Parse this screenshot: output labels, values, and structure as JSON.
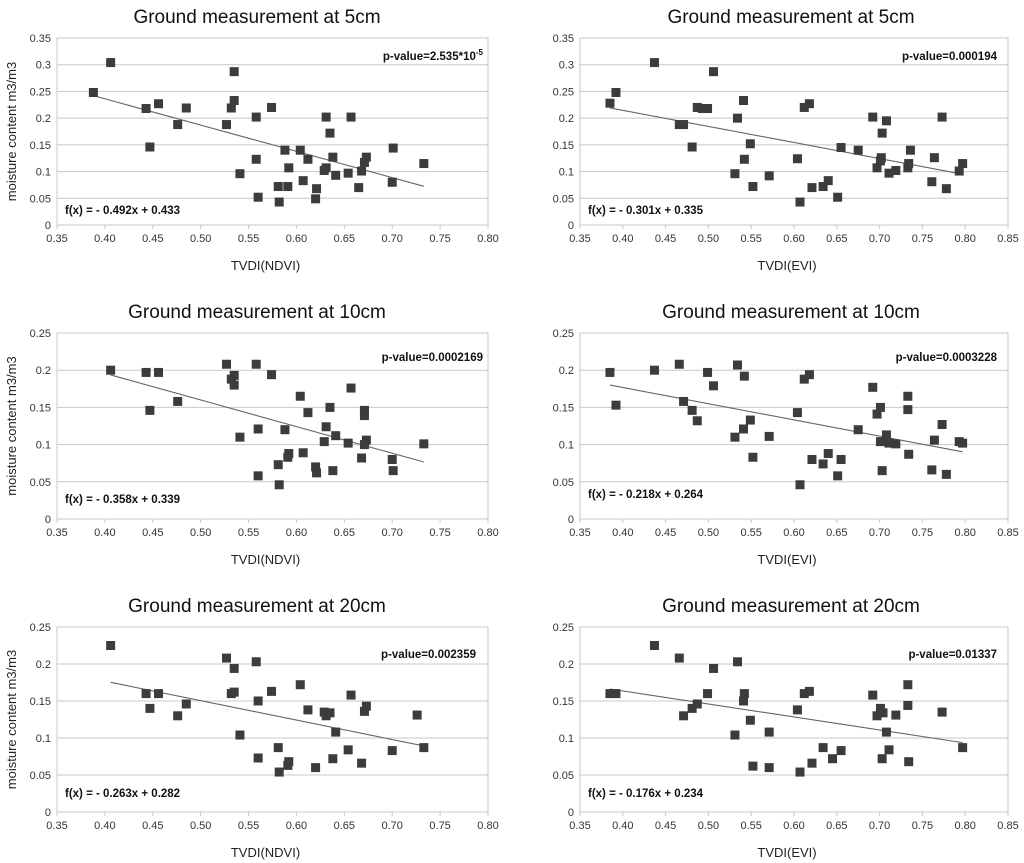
{
  "figure": {
    "background": "#ffffff",
    "marker_color": "#3c3c3c",
    "trendline_color": "#666666",
    "grid_color": "#c8c8c8"
  },
  "chart_data": [
    {
      "type": "scatter",
      "title": "Ground measurement at 5cm",
      "xlabel": "TVDI(NDVI)",
      "ylabel": "moisture content m3/m3",
      "xlim": [
        0.35,
        0.8
      ],
      "ylim": [
        0,
        0.35
      ],
      "x_ticks": [
        "0.35",
        "0.40",
        "0.45",
        "0.50",
        "0.55",
        "0.60",
        "0.65",
        "0.70",
        "0.75",
        "0.80"
      ],
      "y_ticks": [
        "0",
        "0.05",
        "0.1",
        "0.15",
        "0.2",
        "0.25",
        "0.3",
        "0.35"
      ],
      "grid": "horizontal",
      "equation": "f(x) =  - 0.492x + 0.433",
      "p_value": "p-value=2.535*10-5",
      "trendline": {
        "slope": -0.492,
        "intercept": 0.433,
        "x_range": [
          0.388,
          0.733
        ]
      },
      "points": [
        [
          0.388,
          0.248
        ],
        [
          0.406,
          0.304
        ],
        [
          0.443,
          0.218
        ],
        [
          0.447,
          0.146
        ],
        [
          0.456,
          0.227
        ],
        [
          0.476,
          0.188
        ],
        [
          0.485,
          0.219
        ],
        [
          0.527,
          0.188
        ],
        [
          0.532,
          0.219
        ],
        [
          0.535,
          0.233
        ],
        [
          0.535,
          0.287
        ],
        [
          0.541,
          0.096
        ],
        [
          0.558,
          0.123
        ],
        [
          0.558,
          0.202
        ],
        [
          0.56,
          0.052
        ],
        [
          0.574,
          0.22
        ],
        [
          0.581,
          0.072
        ],
        [
          0.582,
          0.043
        ],
        [
          0.588,
          0.14
        ],
        [
          0.591,
          0.072
        ],
        [
          0.592,
          0.107
        ],
        [
          0.604,
          0.14
        ],
        [
          0.607,
          0.083
        ],
        [
          0.612,
          0.123
        ],
        [
          0.62,
          0.049
        ],
        [
          0.621,
          0.068
        ],
        [
          0.629,
          0.102
        ],
        [
          0.631,
          0.107
        ],
        [
          0.631,
          0.202
        ],
        [
          0.635,
          0.172
        ],
        [
          0.638,
          0.127
        ],
        [
          0.641,
          0.093
        ],
        [
          0.654,
          0.097
        ],
        [
          0.657,
          0.202
        ],
        [
          0.665,
          0.07
        ],
        [
          0.668,
          0.101
        ],
        [
          0.671,
          0.117
        ],
        [
          0.673,
          0.127
        ],
        [
          0.7,
          0.08
        ],
        [
          0.701,
          0.144
        ],
        [
          0.733,
          0.115
        ]
      ]
    },
    {
      "type": "scatter",
      "title": "Ground measurement at 5cm",
      "xlabel": "TVDI(EVI)",
      "ylabel": "",
      "xlim": [
        0.35,
        0.85
      ],
      "ylim": [
        0,
        0.35
      ],
      "x_ticks": [
        "0.35",
        "0.40",
        "0.45",
        "0.50",
        "0.55",
        "0.60",
        "0.65",
        "0.70",
        "0.75",
        "0.80",
        "0.85"
      ],
      "y_ticks": [
        "0",
        "0.05",
        "0.1",
        "0.15",
        "0.2",
        "0.25",
        "0.3",
        "0.35"
      ],
      "grid": "horizontal",
      "equation": "f(x) =  - 0.301x + 0.335",
      "p_value": "p-value=0.000194",
      "trendline": {
        "slope": -0.301,
        "intercept": 0.335,
        "x_range": [
          0.385,
          0.797
        ]
      },
      "points": [
        [
          0.385,
          0.228
        ],
        [
          0.392,
          0.248
        ],
        [
          0.437,
          0.304
        ],
        [
          0.466,
          0.188
        ],
        [
          0.471,
          0.188
        ],
        [
          0.481,
          0.146
        ],
        [
          0.487,
          0.22
        ],
        [
          0.493,
          0.218
        ],
        [
          0.499,
          0.218
        ],
        [
          0.506,
          0.287
        ],
        [
          0.531,
          0.096
        ],
        [
          0.534,
          0.2
        ],
        [
          0.541,
          0.233
        ],
        [
          0.542,
          0.123
        ],
        [
          0.549,
          0.152
        ],
        [
          0.552,
          0.072
        ],
        [
          0.571,
          0.092
        ],
        [
          0.604,
          0.124
        ],
        [
          0.607,
          0.043
        ],
        [
          0.612,
          0.22
        ],
        [
          0.618,
          0.227
        ],
        [
          0.621,
          0.07
        ],
        [
          0.634,
          0.072
        ],
        [
          0.64,
          0.083
        ],
        [
          0.651,
          0.052
        ],
        [
          0.655,
          0.145
        ],
        [
          0.675,
          0.14
        ],
        [
          0.692,
          0.202
        ],
        [
          0.697,
          0.107
        ],
        [
          0.701,
          0.12
        ],
        [
          0.702,
          0.126
        ],
        [
          0.703,
          0.172
        ],
        [
          0.708,
          0.195
        ],
        [
          0.711,
          0.097
        ],
        [
          0.719,
          0.102
        ],
        [
          0.733,
          0.107
        ],
        [
          0.734,
          0.115
        ],
        [
          0.736,
          0.14
        ],
        [
          0.761,
          0.081
        ],
        [
          0.764,
          0.126
        ],
        [
          0.773,
          0.202
        ],
        [
          0.778,
          0.068
        ],
        [
          0.793,
          0.101
        ],
        [
          0.797,
          0.115
        ]
      ]
    },
    {
      "type": "scatter",
      "title": "Ground measurement at 10cm",
      "xlabel": "TVDI(NDVI)",
      "ylabel": "moisture content m3/m3",
      "xlim": [
        0.35,
        0.8
      ],
      "ylim": [
        0,
        0.25
      ],
      "x_ticks": [
        "0.35",
        "0.40",
        "0.45",
        "0.50",
        "0.55",
        "0.60",
        "0.65",
        "0.70",
        "0.75",
        "0.80"
      ],
      "y_ticks": [
        "0",
        "0.05",
        "0.1",
        "0.15",
        "0.2",
        "0.25"
      ],
      "grid": "horizontal",
      "equation": "f(x) =  - 0.358x + 0.339",
      "p_value": "p-value=0.0002169",
      "trendline": {
        "slope": -0.358,
        "intercept": 0.339,
        "x_range": [
          0.406,
          0.733
        ]
      },
      "points": [
        [
          0.406,
          0.2
        ],
        [
          0.443,
          0.197
        ],
        [
          0.447,
          0.146
        ],
        [
          0.456,
          0.197
        ],
        [
          0.476,
          0.158
        ],
        [
          0.527,
          0.208
        ],
        [
          0.532,
          0.188
        ],
        [
          0.535,
          0.193
        ],
        [
          0.535,
          0.18
        ],
        [
          0.541,
          0.11
        ],
        [
          0.558,
          0.208
        ],
        [
          0.56,
          0.058
        ],
        [
          0.56,
          0.121
        ],
        [
          0.574,
          0.194
        ],
        [
          0.581,
          0.073
        ],
        [
          0.582,
          0.046
        ],
        [
          0.588,
          0.12
        ],
        [
          0.591,
          0.083
        ],
        [
          0.592,
          0.088
        ],
        [
          0.604,
          0.165
        ],
        [
          0.607,
          0.089
        ],
        [
          0.612,
          0.143
        ],
        [
          0.62,
          0.07
        ],
        [
          0.621,
          0.062
        ],
        [
          0.629,
          0.104
        ],
        [
          0.631,
          0.124
        ],
        [
          0.635,
          0.15
        ],
        [
          0.638,
          0.065
        ],
        [
          0.641,
          0.112
        ],
        [
          0.654,
          0.102
        ],
        [
          0.657,
          0.176
        ],
        [
          0.668,
          0.082
        ],
        [
          0.671,
          0.146
        ],
        [
          0.671,
          0.139
        ],
        [
          0.671,
          0.1
        ],
        [
          0.673,
          0.106
        ],
        [
          0.7,
          0.08
        ],
        [
          0.701,
          0.065
        ],
        [
          0.733,
          0.101
        ]
      ]
    },
    {
      "type": "scatter",
      "title": "Ground measurement at 10cm",
      "xlabel": "TVDI(EVI)",
      "ylabel": "",
      "xlim": [
        0.35,
        0.85
      ],
      "ylim": [
        0,
        0.25
      ],
      "x_ticks": [
        "0.35",
        "0.40",
        "0.45",
        "0.50",
        "0.55",
        "0.60",
        "0.65",
        "0.70",
        "0.75",
        "0.80",
        "0.85"
      ],
      "y_ticks": [
        "0",
        "0.05",
        "0.1",
        "0.15",
        "0.2",
        "0.25"
      ],
      "grid": "horizontal",
      "equation": "f(x) =  - 0.218x + 0.264",
      "p_value": "p-value=0.0003228",
      "trendline": {
        "slope": -0.218,
        "intercept": 0.264,
        "x_range": [
          0.385,
          0.797
        ]
      },
      "points": [
        [
          0.385,
          0.197
        ],
        [
          0.392,
          0.153
        ],
        [
          0.437,
          0.2
        ],
        [
          0.466,
          0.208
        ],
        [
          0.471,
          0.158
        ],
        [
          0.481,
          0.146
        ],
        [
          0.487,
          0.132
        ],
        [
          0.499,
          0.197
        ],
        [
          0.506,
          0.179
        ],
        [
          0.531,
          0.11
        ],
        [
          0.534,
          0.207
        ],
        [
          0.541,
          0.121
        ],
        [
          0.542,
          0.192
        ],
        [
          0.549,
          0.133
        ],
        [
          0.552,
          0.083
        ],
        [
          0.571,
          0.111
        ],
        [
          0.604,
          0.143
        ],
        [
          0.607,
          0.046
        ],
        [
          0.612,
          0.188
        ],
        [
          0.618,
          0.194
        ],
        [
          0.621,
          0.08
        ],
        [
          0.634,
          0.074
        ],
        [
          0.64,
          0.088
        ],
        [
          0.651,
          0.058
        ],
        [
          0.655,
          0.08
        ],
        [
          0.675,
          0.12
        ],
        [
          0.692,
          0.177
        ],
        [
          0.697,
          0.141
        ],
        [
          0.701,
          0.15
        ],
        [
          0.701,
          0.104
        ],
        [
          0.703,
          0.065
        ],
        [
          0.708,
          0.113
        ],
        [
          0.711,
          0.102
        ],
        [
          0.719,
          0.101
        ],
        [
          0.733,
          0.165
        ],
        [
          0.733,
          0.147
        ],
        [
          0.734,
          0.087
        ],
        [
          0.761,
          0.066
        ],
        [
          0.764,
          0.106
        ],
        [
          0.773,
          0.127
        ],
        [
          0.778,
          0.06
        ],
        [
          0.793,
          0.104
        ],
        [
          0.797,
          0.102
        ]
      ]
    },
    {
      "type": "scatter",
      "title": "Ground measurement at 20cm",
      "xlabel": "TVDI(NDVI)",
      "ylabel": "moisture content m3/m3",
      "xlim": [
        0.35,
        0.8
      ],
      "ylim": [
        0,
        0.25
      ],
      "x_ticks": [
        "0.35",
        "0.40",
        "0.45",
        "0.50",
        "0.55",
        "0.60",
        "0.65",
        "0.70",
        "0.75",
        "0.80"
      ],
      "y_ticks": [
        "0",
        "0.05",
        "0.1",
        "0.15",
        "0.2",
        "0.25"
      ],
      "grid": "horizontal",
      "equation": "f(x) =  - 0.263x + 0.282",
      "p_value": "p-value=0.002359",
      "trendline": {
        "slope": -0.263,
        "intercept": 0.282,
        "x_range": [
          0.406,
          0.733
        ]
      },
      "points": [
        [
          0.406,
          0.225
        ],
        [
          0.443,
          0.16
        ],
        [
          0.447,
          0.14
        ],
        [
          0.456,
          0.16
        ],
        [
          0.476,
          0.13
        ],
        [
          0.485,
          0.146
        ],
        [
          0.527,
          0.208
        ],
        [
          0.532,
          0.16
        ],
        [
          0.535,
          0.194
        ],
        [
          0.535,
          0.162
        ],
        [
          0.541,
          0.104
        ],
        [
          0.558,
          0.203
        ],
        [
          0.56,
          0.073
        ],
        [
          0.56,
          0.15
        ],
        [
          0.574,
          0.163
        ],
        [
          0.581,
          0.087
        ],
        [
          0.582,
          0.054
        ],
        [
          0.591,
          0.063
        ],
        [
          0.592,
          0.068
        ],
        [
          0.604,
          0.172
        ],
        [
          0.612,
          0.138
        ],
        [
          0.62,
          0.06
        ],
        [
          0.629,
          0.135
        ],
        [
          0.631,
          0.13
        ],
        [
          0.635,
          0.134
        ],
        [
          0.638,
          0.072
        ],
        [
          0.641,
          0.108
        ],
        [
          0.654,
          0.084
        ],
        [
          0.657,
          0.158
        ],
        [
          0.668,
          0.066
        ],
        [
          0.671,
          0.136
        ],
        [
          0.673,
          0.143
        ],
        [
          0.7,
          0.083
        ],
        [
          0.726,
          0.131
        ],
        [
          0.733,
          0.087
        ]
      ]
    },
    {
      "type": "scatter",
      "title": "Ground measurement at 20cm",
      "xlabel": "TVDI(EVI)",
      "ylabel": "",
      "xlim": [
        0.35,
        0.85
      ],
      "ylim": [
        0,
        0.25
      ],
      "x_ticks": [
        "0.35",
        "0.40",
        "0.45",
        "0.50",
        "0.55",
        "0.60",
        "0.65",
        "0.70",
        "0.75",
        "0.80",
        "0.85"
      ],
      "y_ticks": [
        "0",
        "0.05",
        "0.1",
        "0.15",
        "0.2",
        "0.25"
      ],
      "grid": "horizontal",
      "equation": "f(x) =  - 0.176x + 0.234",
      "p_value": "p-value=0.01337",
      "trendline": {
        "slope": -0.176,
        "intercept": 0.234,
        "x_range": [
          0.385,
          0.797
        ]
      },
      "points": [
        [
          0.385,
          0.16
        ],
        [
          0.392,
          0.16
        ],
        [
          0.437,
          0.225
        ],
        [
          0.466,
          0.208
        ],
        [
          0.471,
          0.13
        ],
        [
          0.481,
          0.14
        ],
        [
          0.487,
          0.146
        ],
        [
          0.499,
          0.16
        ],
        [
          0.506,
          0.194
        ],
        [
          0.531,
          0.104
        ],
        [
          0.534,
          0.203
        ],
        [
          0.541,
          0.15
        ],
        [
          0.542,
          0.16
        ],
        [
          0.549,
          0.124
        ],
        [
          0.552,
          0.062
        ],
        [
          0.571,
          0.108
        ],
        [
          0.571,
          0.06
        ],
        [
          0.604,
          0.138
        ],
        [
          0.607,
          0.054
        ],
        [
          0.612,
          0.16
        ],
        [
          0.618,
          0.163
        ],
        [
          0.621,
          0.066
        ],
        [
          0.634,
          0.087
        ],
        [
          0.645,
          0.072
        ],
        [
          0.655,
          0.083
        ],
        [
          0.692,
          0.158
        ],
        [
          0.697,
          0.13
        ],
        [
          0.701,
          0.14
        ],
        [
          0.703,
          0.072
        ],
        [
          0.704,
          0.134
        ],
        [
          0.708,
          0.108
        ],
        [
          0.711,
          0.084
        ],
        [
          0.719,
          0.131
        ],
        [
          0.733,
          0.172
        ],
        [
          0.733,
          0.144
        ],
        [
          0.734,
          0.068
        ],
        [
          0.773,
          0.135
        ],
        [
          0.797,
          0.087
        ]
      ]
    }
  ]
}
